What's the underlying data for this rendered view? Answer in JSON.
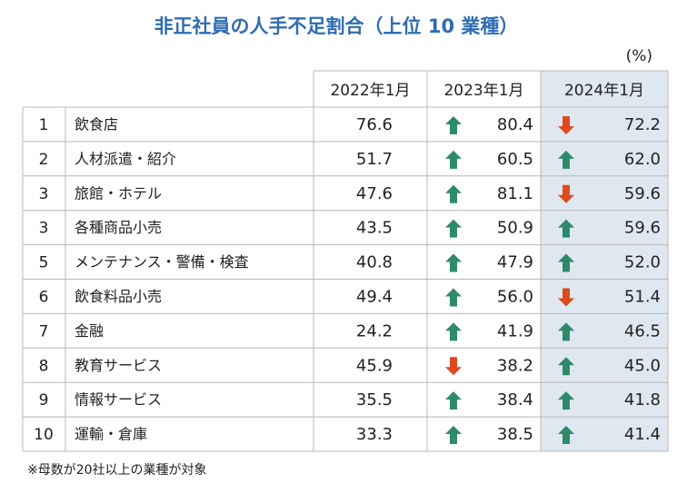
{
  "title": "非正社員の人手不足割合（上位 10 業種）",
  "unit": "(%)",
  "table": {
    "header": [
      "2022年1月",
      "2023年1月",
      "2024年1月"
    ],
    "rows": [
      [
        "1",
        "飲食店",
        "76.6",
        "80.4",
        "72.2"
      ],
      [
        "2",
        "人材派遣・紹介",
        "51.7",
        "60.5",
        "62.0"
      ],
      [
        "3",
        "旅館・ホテル",
        "47.6",
        "81.1",
        "59.6"
      ],
      [
        "3",
        "各種商品小売",
        "43.5",
        "50.9",
        "59.6"
      ],
      [
        "5",
        "メンテナンス・警備・検査",
        "40.8",
        "47.9",
        "52.0"
      ],
      [
        "6",
        "飲食料品小売",
        "49.4",
        "56.0",
        "51.4"
      ],
      [
        "7",
        "金融",
        "24.2",
        "41.9",
        "46.5"
      ],
      [
        "8",
        "教育サービス",
        "45.9",
        "38.2",
        "45.0"
      ],
      [
        "9",
        "情報サービス",
        "35.5",
        "38.4",
        "41.8"
      ],
      [
        "10",
        "運輸・倉庫",
        "33.3",
        "38.5",
        "41.4"
      ]
    ]
  },
  "footnote": "※母数が20社以上の業種が対象"
}
